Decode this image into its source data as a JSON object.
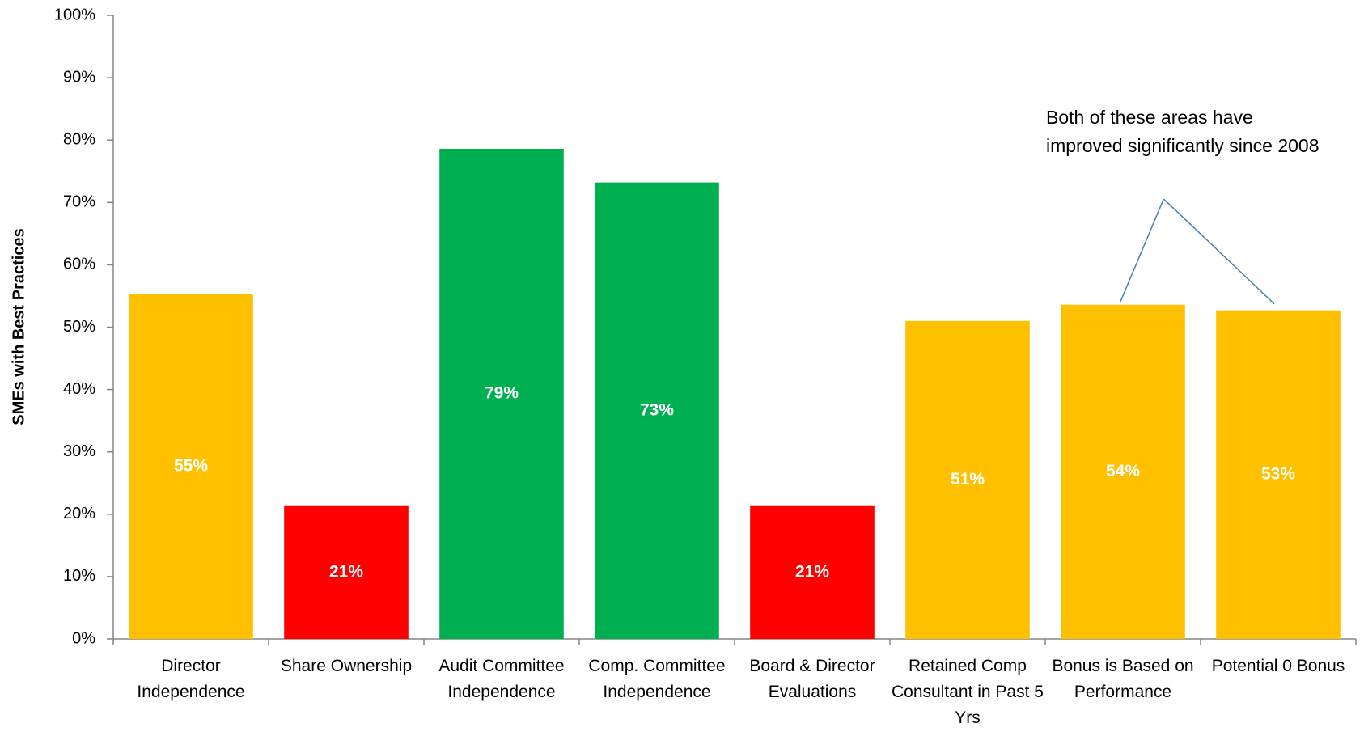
{
  "chart_data": {
    "type": "bar",
    "y_label": "SMEs with Best Practices",
    "categories": [
      "Director Independence",
      "Share Ownership",
      "Audit Committee Independence",
      "Comp. Committee Independence",
      "Board & Director Evaluations",
      "Retained Comp Consultant in Past 5 Yrs",
      "Bonus is Based on Performance",
      "Potential 0 Bonus"
    ],
    "values": [
      55.3,
      21.3,
      78.6,
      73.2,
      21.3,
      51,
      53.6,
      52.7
    ],
    "value_labels": [
      "55%",
      "21%",
      "79%",
      "73%",
      "21%",
      "51%",
      "54%",
      "53%"
    ],
    "colors": [
      "#ffc000",
      "#ff0000",
      "#00b050",
      "#00b050",
      "#ff0000",
      "#ffc000",
      "#ffc000",
      "#ffc000"
    ],
    "ylim": [
      0,
      100
    ],
    "yticks": [
      {
        "value": 0,
        "label": "0%"
      },
      {
        "value": 10,
        "label": "10%"
      },
      {
        "value": 20,
        "label": "20%"
      },
      {
        "value": 30,
        "label": "30%"
      },
      {
        "value": 40,
        "label": "40%"
      },
      {
        "value": 50,
        "label": "50%"
      },
      {
        "value": 60,
        "label": "60%"
      },
      {
        "value": 70,
        "label": "70%"
      },
      {
        "value": 80,
        "label": "80%"
      },
      {
        "value": 90,
        "label": "90%"
      },
      {
        "value": 100,
        "label": "100%"
      }
    ],
    "grid": false,
    "annotation": "Both of these areas have improved significantly since 2008"
  }
}
